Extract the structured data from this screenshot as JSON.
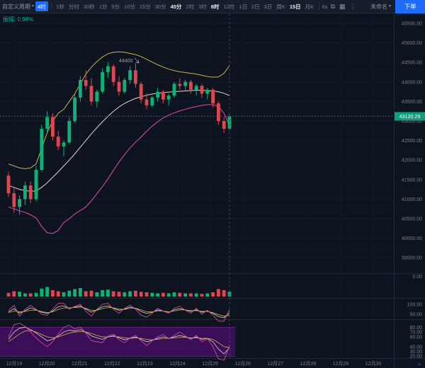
{
  "toolbar": {
    "period_selector": "自定义周期",
    "selected_timeframe": "4时",
    "timeframes": [
      {
        "label": "1秒",
        "state": "normal"
      },
      {
        "label": "分时",
        "state": "normal"
      },
      {
        "label": "30秒",
        "state": "normal"
      },
      {
        "label": "1分",
        "state": "normal"
      },
      {
        "label": "5分",
        "state": "normal"
      },
      {
        "label": "10分",
        "state": "normal"
      },
      {
        "label": "15分",
        "state": "normal"
      },
      {
        "label": "30分",
        "state": "normal"
      },
      {
        "label": "45分",
        "state": "active"
      },
      {
        "label": "2时",
        "state": "normal"
      },
      {
        "label": "3时",
        "state": "normal"
      },
      {
        "label": "8时",
        "state": "active"
      },
      {
        "label": "12时",
        "state": "normal"
      },
      {
        "label": "1日",
        "state": "normal"
      },
      {
        "label": "2日",
        "state": "normal"
      },
      {
        "label": "3日",
        "state": "normal"
      },
      {
        "label": "周K",
        "state": "normal"
      },
      {
        "label": "15日",
        "state": "active"
      },
      {
        "label": "月K",
        "state": "normal"
      }
    ],
    "countdown": "6s",
    "icons": [
      {
        "name": "camera-icon",
        "glyph": "⧉"
      },
      {
        "name": "layout-grid-icon",
        "glyph": "▦"
      },
      {
        "name": "more-options-icon",
        "glyph": "⋮"
      }
    ],
    "layout_name": "未命名",
    "order_button": "下单"
  },
  "indicator_header": {
    "label": "振幅:",
    "value": "0.96%"
  },
  "chart_data": {
    "type": "candlestick",
    "last_price": "43120.29",
    "annotation": "44400",
    "price_axis": [
      45500,
      45000,
      44500,
      44000,
      43500,
      43000,
      42500,
      42000,
      41500,
      41000,
      40500,
      40000,
      39500
    ],
    "volume_axis_label": "0.00",
    "osc_axis": [
      100,
      50
    ],
    "kdj_axis": [
      80,
      70,
      60,
      40,
      30,
      20
    ],
    "dates": [
      "12月19",
      "12月20",
      "12月21",
      "12月22",
      "12月23",
      "12月24",
      "12月25",
      "12月26",
      "12月27",
      "12月28",
      "12月29",
      "12月30"
    ],
    "candles": [
      [
        41600,
        41700,
        41050,
        41150
      ],
      [
        41150,
        41300,
        40650,
        40800
      ],
      [
        40800,
        41100,
        40600,
        41000
      ],
      [
        41000,
        41450,
        40850,
        41350
      ],
      [
        41350,
        41450,
        40900,
        41000
      ],
      [
        41000,
        41850,
        40950,
        41750
      ],
      [
        41750,
        42900,
        41700,
        42800
      ],
      [
        42800,
        43250,
        42700,
        43100
      ],
      [
        43100,
        43200,
        42500,
        42600
      ],
      [
        42600,
        42750,
        42250,
        42350
      ],
      [
        42350,
        42500,
        42100,
        42450
      ],
      [
        42450,
        43100,
        42400,
        43000
      ],
      [
        43000,
        43700,
        42950,
        43600
      ],
      [
        43600,
        44150,
        43500,
        44050
      ],
      [
        44050,
        44300,
        43800,
        43900
      ],
      [
        43900,
        44100,
        43400,
        43500
      ],
      [
        43500,
        43800,
        43350,
        43750
      ],
      [
        43750,
        44350,
        43700,
        44250
      ],
      [
        44250,
        44500,
        44100,
        44400
      ],
      [
        44400,
        44450,
        43900,
        44000
      ],
      [
        44000,
        44150,
        43650,
        43750
      ],
      [
        43750,
        44100,
        43700,
        44050
      ],
      [
        44050,
        44400,
        43950,
        44300
      ],
      [
        44300,
        44480,
        43850,
        43950
      ],
      [
        43950,
        44000,
        43450,
        43550
      ],
      [
        43550,
        43700,
        43300,
        43400
      ],
      [
        43400,
        43650,
        43350,
        43600
      ],
      [
        43600,
        43850,
        43500,
        43750
      ],
      [
        43750,
        43800,
        43450,
        43550
      ],
      [
        43550,
        43700,
        43400,
        43650
      ],
      [
        43650,
        44000,
        43600,
        43950
      ],
      [
        43950,
        44100,
        43800,
        43900
      ],
      [
        43900,
        44050,
        43750,
        44000
      ],
      [
        44000,
        44050,
        43700,
        43800
      ],
      [
        43800,
        43950,
        43650,
        43900
      ],
      [
        43900,
        43950,
        43600,
        43700
      ],
      [
        43700,
        43850,
        43550,
        43800
      ],
      [
        43800,
        43850,
        43350,
        43450
      ],
      [
        43450,
        43500,
        42900,
        43000
      ],
      [
        43000,
        43100,
        42700,
        42800
      ],
      [
        42800,
        43180,
        42750,
        43120.29
      ]
    ],
    "boll_upper": [
      41900,
      41850,
      41800,
      41780,
      41800,
      41900,
      42300,
      42700,
      43000,
      43200,
      43300,
      43500,
      43700,
      43950,
      44200,
      44380,
      44520,
      44640,
      44720,
      44760,
      44770,
      44760,
      44730,
      44700,
      44650,
      44580,
      44510,
      44440,
      44380,
      44330,
      44290,
      44260,
      44240,
      44220,
      44200,
      44170,
      44140,
      44120,
      44130,
      44220,
      44420
    ],
    "boll_mid": [
      41350,
      41300,
      41250,
      41220,
      41200,
      41210,
      41300,
      41420,
      41560,
      41700,
      41850,
      42000,
      42160,
      42330,
      42500,
      42670,
      42830,
      42980,
      43120,
      43250,
      43360,
      43450,
      43520,
      43580,
      43620,
      43660,
      43690,
      43710,
      43730,
      43740,
      43750,
      43760,
      43770,
      43780,
      43785,
      43785,
      43780,
      43770,
      43750,
      43710,
      43650
    ],
    "boll_lower": [
      40800,
      40750,
      40700,
      40660,
      40600,
      40520,
      40300,
      40140,
      40120,
      40200,
      40400,
      40500,
      40620,
      40710,
      40800,
      40960,
      41140,
      41320,
      41520,
      41740,
      41950,
      42140,
      42310,
      42460,
      42590,
      42740,
      42870,
      42980,
      43080,
      43150,
      43210,
      43260,
      43300,
      43340,
      43370,
      43400,
      43420,
      43420,
      43370,
      43200,
      42880
    ],
    "volume": [
      0.35,
      0.5,
      0.45,
      0.3,
      0.3,
      0.35,
      0.75,
      0.9,
      0.6,
      0.5,
      0.4,
      0.55,
      0.7,
      0.8,
      0.5,
      0.55,
      0.4,
      0.6,
      0.65,
      0.5,
      0.45,
      0.4,
      0.5,
      0.55,
      0.45,
      0.4,
      0.35,
      0.3,
      0.35,
      0.3,
      0.4,
      0.35,
      0.3,
      0.3,
      0.3,
      0.25,
      0.3,
      0.4,
      0.7,
      0.6,
      0.45
    ],
    "osc": {
      "k": [
        62,
        78,
        55,
        68,
        82,
        72,
        60,
        54,
        66,
        88,
        92,
        80,
        86,
        92,
        76,
        60,
        72,
        88,
        92,
        80,
        70,
        76,
        86,
        80,
        64,
        54,
        60,
        72,
        66,
        60,
        72,
        78,
        72,
        64,
        72,
        60,
        66,
        54,
        38,
        32,
        56
      ],
      "d": [
        58,
        66,
        62,
        64,
        70,
        70,
        64,
        58,
        62,
        74,
        82,
        82,
        84,
        86,
        80,
        70,
        70,
        78,
        84,
        82,
        76,
        74,
        80,
        80,
        72,
        62,
        62,
        66,
        66,
        62,
        66,
        72,
        72,
        68,
        68,
        64,
        64,
        58,
        48,
        40,
        44
      ],
      "j": [
        70,
        95,
        40,
        75,
        95,
        75,
        50,
        45,
        75,
        105,
        105,
        75,
        90,
        100,
        65,
        40,
        75,
        100,
        105,
        75,
        55,
        80,
        95,
        75,
        45,
        35,
        55,
        80,
        65,
        55,
        80,
        90,
        70,
        55,
        80,
        50,
        70,
        45,
        15,
        15,
        75
      ]
    },
    "kdj": {
      "k": [
        55,
        70,
        78,
        80,
        75,
        68,
        60,
        52,
        55,
        62,
        70,
        74,
        72,
        75,
        70,
        62,
        58,
        55,
        60,
        63,
        58,
        54,
        57,
        60,
        55,
        50,
        53,
        57,
        60,
        57,
        60,
        63,
        60,
        57,
        60,
        55,
        57,
        50,
        35,
        25,
        38
      ],
      "d": [
        50,
        58,
        66,
        72,
        73,
        70,
        65,
        60,
        58,
        60,
        64,
        68,
        70,
        71,
        70,
        67,
        63,
        60,
        60,
        61,
        60,
        58,
        57,
        58,
        57,
        55,
        54,
        55,
        57,
        57,
        58,
        59,
        59,
        58,
        58,
        57,
        57,
        55,
        48,
        40,
        38
      ],
      "j": [
        60,
        85,
        88,
        82,
        70,
        58,
        48,
        40,
        50,
        66,
        80,
        84,
        76,
        80,
        68,
        52,
        50,
        48,
        62,
        66,
        54,
        48,
        58,
        63,
        52,
        42,
        52,
        60,
        65,
        56,
        63,
        70,
        62,
        54,
        63,
        50,
        56,
        40,
        15,
        12,
        42
      ]
    },
    "colors": {
      "up": "#0bb377",
      "down": "#e0464f",
      "boll_upper": "#c9b34b",
      "boll_mid": "#ded9cb",
      "boll_lower": "#e050a2",
      "price_tag_bg": "#00a57d",
      "accent_blue": "#1f6bff",
      "band_fill": "#3a0f57",
      "band_edge": "#7a2a8f",
      "axis_text": "#76808f"
    }
  }
}
